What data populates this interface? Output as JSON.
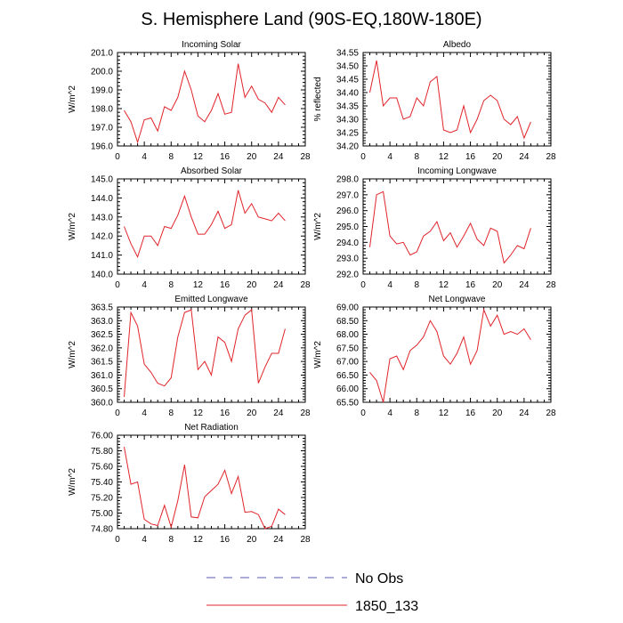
{
  "title": "S. Hemisphere Land (90S-EQ,180W-180E)",
  "legend": [
    {
      "label": "No Obs",
      "color": "#5a5ab4",
      "style": "dashed"
    },
    {
      "label": "1850_133",
      "color": "#e0242a",
      "style": "solid"
    }
  ],
  "chart_data": [
    {
      "type": "line",
      "title": "Incoming Solar",
      "ylabel": "W/m^2",
      "xlim": [
        0,
        28
      ],
      "ylim": [
        196.0,
        201.0
      ],
      "xticks": [
        "0",
        "4",
        "8",
        "12",
        "16",
        "20",
        "24",
        "28"
      ],
      "yticks": [
        "196.0",
        "197.0",
        "198.0",
        "199.0",
        "200.0",
        "201.0"
      ],
      "series": [
        {
          "name": "1850_133",
          "color": "#e0242a",
          "x": [
            1,
            2,
            3,
            4,
            5,
            6,
            7,
            8,
            9,
            10,
            11,
            12,
            13,
            14,
            15,
            16,
            17,
            18,
            19,
            20,
            21,
            22,
            23,
            24,
            25
          ],
          "values": [
            197.9,
            197.3,
            196.2,
            197.4,
            197.5,
            196.8,
            198.1,
            197.9,
            198.6,
            200.0,
            199.0,
            197.6,
            197.3,
            197.9,
            198.8,
            197.7,
            197.8,
            200.4,
            198.6,
            199.2,
            198.5,
            198.3,
            197.8,
            198.6,
            198.2
          ]
        }
      ]
    },
    {
      "type": "line",
      "title": "Albedo",
      "ylabel": "% reflected",
      "xlim": [
        0,
        28
      ],
      "ylim": [
        34.2,
        34.55
      ],
      "xticks": [
        "0",
        "4",
        "8",
        "12",
        "16",
        "20",
        "24",
        "28"
      ],
      "yticks": [
        "34.20",
        "34.25",
        "34.30",
        "34.35",
        "34.40",
        "34.45",
        "34.50",
        "34.55"
      ],
      "series": [
        {
          "name": "1850_133",
          "color": "#e0242a",
          "x": [
            1,
            2,
            3,
            4,
            5,
            6,
            7,
            8,
            9,
            10,
            11,
            12,
            13,
            14,
            15,
            16,
            17,
            18,
            19,
            20,
            21,
            22,
            23,
            24,
            25
          ],
          "values": [
            34.4,
            34.52,
            34.35,
            34.38,
            34.38,
            34.3,
            34.31,
            34.38,
            34.35,
            34.44,
            34.46,
            34.26,
            34.25,
            34.26,
            34.35,
            34.25,
            34.3,
            34.37,
            34.39,
            34.37,
            34.3,
            34.28,
            34.31,
            34.23,
            34.29
          ]
        }
      ]
    },
    {
      "type": "line",
      "title": "Absorbed Solar",
      "ylabel": "W/m^2",
      "xlim": [
        0,
        28
      ],
      "ylim": [
        140.0,
        145.0
      ],
      "xticks": [
        "0",
        "4",
        "8",
        "12",
        "16",
        "20",
        "24",
        "28"
      ],
      "yticks": [
        "140.0",
        "141.0",
        "142.0",
        "143.0",
        "144.0",
        "145.0"
      ],
      "series": [
        {
          "name": "1850_133",
          "color": "#e0242a",
          "x": [
            1,
            2,
            3,
            4,
            5,
            6,
            7,
            8,
            9,
            10,
            11,
            12,
            13,
            14,
            15,
            16,
            17,
            18,
            19,
            20,
            21,
            22,
            23,
            24,
            25
          ],
          "values": [
            142.5,
            141.6,
            140.9,
            142.0,
            142.0,
            141.5,
            142.5,
            142.4,
            143.1,
            144.1,
            143.0,
            142.1,
            142.1,
            142.6,
            143.3,
            142.4,
            142.6,
            144.4,
            143.2,
            143.7,
            143.0,
            142.9,
            142.8,
            143.2,
            142.8
          ]
        }
      ]
    },
    {
      "type": "line",
      "title": "Incoming Longwave",
      "ylabel": "W/m^2",
      "xlim": [
        0,
        28
      ],
      "ylim": [
        292.0,
        298.0
      ],
      "xticks": [
        "0",
        "4",
        "8",
        "12",
        "16",
        "20",
        "24",
        "28"
      ],
      "yticks": [
        "292.0",
        "293.0",
        "294.0",
        "295.0",
        "296.0",
        "297.0",
        "298.0"
      ],
      "series": [
        {
          "name": "1850_133",
          "color": "#e0242a",
          "x": [
            1,
            2,
            3,
            4,
            5,
            6,
            7,
            8,
            9,
            10,
            11,
            12,
            13,
            14,
            15,
            16,
            17,
            18,
            19,
            20,
            21,
            22,
            23,
            24,
            25
          ],
          "values": [
            293.7,
            297.0,
            297.2,
            294.4,
            293.9,
            294.0,
            293.2,
            293.4,
            294.4,
            294.7,
            295.3,
            294.1,
            294.6,
            293.7,
            294.4,
            295.2,
            294.2,
            293.8,
            294.9,
            294.7,
            292.7,
            293.2,
            293.8,
            293.6,
            294.9
          ]
        }
      ]
    },
    {
      "type": "line",
      "title": "Emitted Longwave",
      "ylabel": "W/m^2",
      "xlim": [
        0,
        28
      ],
      "ylim": [
        360.0,
        363.5
      ],
      "xticks": [
        "0",
        "4",
        "8",
        "12",
        "16",
        "20",
        "24",
        "28"
      ],
      "yticks": [
        "360.0",
        "360.5",
        "361.0",
        "361.5",
        "362.0",
        "362.5",
        "363.0",
        "363.5"
      ],
      "series": [
        {
          "name": "1850_133",
          "color": "#e0242a",
          "x": [
            1,
            2,
            3,
            4,
            5,
            6,
            7,
            8,
            9,
            10,
            11,
            12,
            13,
            14,
            15,
            16,
            17,
            18,
            19,
            20,
            21,
            22,
            23,
            24,
            25
          ],
          "values": [
            360.2,
            363.3,
            362.8,
            361.4,
            361.1,
            360.7,
            360.6,
            360.9,
            362.4,
            363.3,
            363.4,
            361.2,
            361.5,
            361.0,
            362.4,
            362.2,
            361.5,
            362.7,
            363.2,
            363.4,
            360.7,
            361.3,
            361.8,
            361.8,
            362.7
          ]
        }
      ]
    },
    {
      "type": "line",
      "title": "Net Longwave",
      "ylabel": "W/m^2",
      "xlim": [
        0,
        28
      ],
      "ylim": [
        65.5,
        69.0
      ],
      "xticks": [
        "0",
        "4",
        "8",
        "12",
        "16",
        "20",
        "24",
        "28"
      ],
      "yticks": [
        "65.50",
        "66.00",
        "66.50",
        "67.00",
        "67.50",
        "68.00",
        "68.50",
        "69.00"
      ],
      "series": [
        {
          "name": "1850_133",
          "color": "#e0242a",
          "x": [
            1,
            2,
            3,
            4,
            5,
            6,
            7,
            8,
            9,
            10,
            11,
            12,
            13,
            14,
            15,
            16,
            17,
            18,
            19,
            20,
            21,
            22,
            23,
            24,
            25
          ],
          "values": [
            66.6,
            66.3,
            65.5,
            67.1,
            67.2,
            66.7,
            67.4,
            67.6,
            67.9,
            68.5,
            68.1,
            67.2,
            66.9,
            67.3,
            67.9,
            66.9,
            67.4,
            68.9,
            68.3,
            68.7,
            68.0,
            68.1,
            68.0,
            68.2,
            67.8
          ]
        }
      ]
    },
    {
      "type": "line",
      "title": "Net Radiation",
      "ylabel": "W/m^2",
      "xlim": [
        0,
        28
      ],
      "ylim": [
        74.8,
        76.0
      ],
      "xticks": [
        "0",
        "4",
        "8",
        "12",
        "16",
        "20",
        "24",
        "28"
      ],
      "yticks": [
        "74.80",
        "75.00",
        "75.20",
        "75.40",
        "75.60",
        "75.80",
        "76.00"
      ],
      "series": [
        {
          "name": "1850_133",
          "color": "#e0242a",
          "x": [
            1,
            2,
            3,
            4,
            5,
            6,
            7,
            8,
            9,
            10,
            11,
            12,
            13,
            14,
            15,
            16,
            17,
            18,
            19,
            20,
            21,
            22,
            23,
            24,
            25
          ],
          "values": [
            75.85,
            75.37,
            75.4,
            74.92,
            74.86,
            74.84,
            75.1,
            74.82,
            75.16,
            75.62,
            74.95,
            74.94,
            75.21,
            75.29,
            75.37,
            75.55,
            75.25,
            75.47,
            75.01,
            75.02,
            74.98,
            74.8,
            74.83,
            75.05,
            74.98
          ]
        }
      ]
    }
  ]
}
